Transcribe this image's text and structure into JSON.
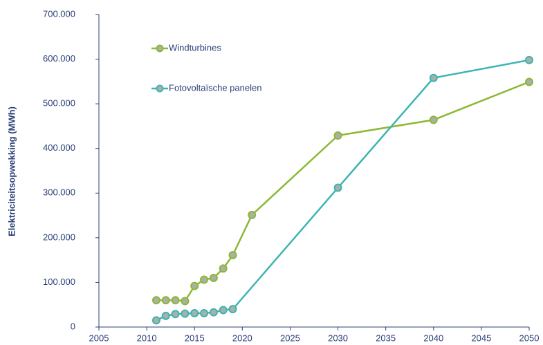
{
  "chart_data": {
    "type": "line",
    "y_axis_label": "Elektriciteitsopwekking (MWh)",
    "xlim": [
      2005,
      2050
    ],
    "xticks": [
      2005,
      2010,
      2015,
      2020,
      2025,
      2030,
      2035,
      2040,
      2045,
      2050
    ],
    "ylim": [
      0,
      700000
    ],
    "yticks": [
      0,
      {
        "value": 100000,
        "label": "100.000"
      },
      {
        "value": 200000,
        "label": "200.000"
      },
      {
        "value": 300000,
        "label": "300.000"
      },
      {
        "value": 400000,
        "label": "400.000"
      },
      {
        "value": 500000,
        "label": "500.000"
      },
      {
        "value": 600000,
        "label": "600.000"
      },
      {
        "value": 700000,
        "label": "700.000"
      }
    ],
    "series": [
      {
        "name": "Windturbines",
        "color": "#8cb833",
        "x": [
          2011,
          2012,
          2013,
          2014,
          2015,
          2016,
          2017,
          2018,
          2019,
          2021,
          2030,
          2040,
          2050
        ],
        "values": [
          60000,
          60000,
          60000,
          58000,
          92000,
          106000,
          110000,
          131000,
          161000,
          251000,
          429000,
          464000,
          549000
        ]
      },
      {
        "name": "Fotovoltaïsche panelen",
        "color": "#3cb4b4",
        "x": [
          2011,
          2012,
          2013,
          2014,
          2015,
          2016,
          2017,
          2018,
          2019,
          2030,
          2040,
          2050
        ],
        "values": [
          15000,
          25000,
          29000,
          30000,
          31000,
          31000,
          33000,
          38000,
          40000,
          312000,
          558000,
          598000
        ]
      }
    ]
  }
}
